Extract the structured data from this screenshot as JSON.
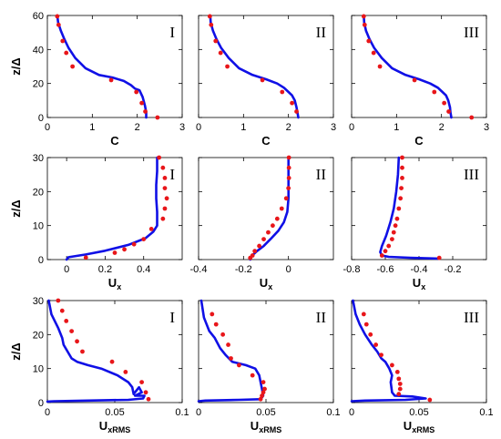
{
  "colors": {
    "line": "#1010e6",
    "points": "#e8161a",
    "axes": "#000000"
  },
  "chart_data": [
    {
      "type": "line",
      "panel_label": "I",
      "xlabel": "C",
      "xlabel_sub": "",
      "ylabel": "z/Δ",
      "xlim": [
        0,
        3
      ],
      "ylim": [
        0,
        60
      ],
      "xticks": [
        "0",
        "1",
        "2",
        "3"
      ],
      "yticks": [
        "0",
        "20",
        "40",
        "60"
      ],
      "series": [
        {
          "kind": "line",
          "x": [
            0.22,
            0.24,
            0.3,
            0.38,
            0.47,
            0.62,
            0.85,
            1.15,
            1.45,
            1.7,
            1.86,
            1.95,
            2.05,
            2.12,
            2.17,
            2.2,
            2.2
          ],
          "y": [
            60,
            56,
            51,
            46,
            41,
            35,
            29,
            25,
            23.5,
            21.5,
            19,
            17,
            16,
            12,
            7,
            3,
            0
          ]
        },
        {
          "kind": "points",
          "x": [
            0.22,
            0.25,
            0.34,
            0.42,
            0.56,
            1.42,
            1.98,
            2.1,
            2.18,
            2.45
          ],
          "y": [
            59.5,
            54.5,
            45,
            38,
            30,
            22,
            15,
            8.5,
            3.5,
            0
          ]
        }
      ]
    },
    {
      "type": "line",
      "panel_label": "II",
      "xlabel": "C",
      "xlabel_sub": "",
      "ylabel": "",
      "xlim": [
        0,
        3
      ],
      "ylim": [
        0,
        60
      ],
      "xticks": [
        "0",
        "1",
        "2",
        "3"
      ],
      "yticks": [],
      "series": [
        {
          "kind": "line",
          "x": [
            0.26,
            0.27,
            0.32,
            0.4,
            0.5,
            0.67,
            0.9,
            1.2,
            1.5,
            1.75,
            1.9,
            2.0,
            2.08,
            2.14,
            2.18,
            2.2,
            2.22
          ],
          "y": [
            60,
            56,
            51,
            46,
            41,
            35,
            29,
            25,
            22.5,
            20,
            17.5,
            15,
            13,
            10,
            6,
            3,
            0
          ]
        },
        {
          "kind": "points",
          "x": [
            0.25,
            0.28,
            0.38,
            0.49,
            0.64,
            1.42,
            1.86,
            2.08,
            2.18
          ],
          "y": [
            59.5,
            54.5,
            45,
            38,
            30,
            22,
            15,
            8.5,
            3.5
          ]
        }
      ]
    },
    {
      "type": "line",
      "panel_label": "III",
      "xlabel": "C",
      "xlabel_sub": "",
      "ylabel": "",
      "xlim": [
        0,
        3
      ],
      "ylim": [
        0,
        60
      ],
      "xticks": [
        "0",
        "1",
        "2",
        "3"
      ],
      "yticks": [],
      "series": [
        {
          "kind": "line",
          "x": [
            0.27,
            0.28,
            0.32,
            0.4,
            0.5,
            0.67,
            0.9,
            1.2,
            1.5,
            1.75,
            1.92,
            2.02,
            2.1,
            2.15,
            2.19,
            2.2,
            2.22
          ],
          "y": [
            60,
            56,
            51,
            46,
            41,
            35,
            29,
            25,
            22.5,
            20,
            17.5,
            15,
            13,
            10,
            6,
            3,
            0
          ]
        },
        {
          "kind": "points",
          "x": [
            0.27,
            0.29,
            0.38,
            0.49,
            0.63,
            1.4,
            1.84,
            2.06,
            2.16,
            2.67
          ],
          "y": [
            59.5,
            54.5,
            45,
            38,
            30,
            22,
            15,
            8.5,
            3.5,
            0
          ]
        }
      ]
    },
    {
      "type": "line",
      "panel_label": "I",
      "xlabel": "U",
      "xlabel_sub": "x",
      "ylabel": "z/Δ",
      "xlim": [
        -0.1,
        0.6
      ],
      "ylim": [
        0,
        30
      ],
      "xticks": [
        "0",
        "0.2",
        "0.4"
      ],
      "xtick_values": [
        0,
        0.2,
        0.4
      ],
      "yticks": [
        "0",
        "10",
        "20",
        "30"
      ],
      "series": [
        {
          "kind": "line",
          "x": [
            0.47,
            0.47,
            0.465,
            0.465,
            0.47,
            0.47,
            0.47,
            0.45,
            0.41,
            0.32,
            0.2,
            0.1,
            0.01,
            0
          ],
          "y": [
            30,
            26,
            22,
            18,
            14,
            11,
            10,
            8.2,
            6.3,
            4.3,
            2.6,
            1.5,
            0.7,
            0
          ]
        },
        {
          "kind": "points",
          "x": [
            0.48,
            0.5,
            0.51,
            0.51,
            0.52,
            0.51,
            0.5,
            0.44,
            0.4,
            0.35,
            0.3,
            0.25,
            0.1
          ],
          "y": [
            30,
            27,
            24,
            21,
            18,
            15,
            12,
            9,
            6,
            4.5,
            3,
            2,
            0.6
          ]
        }
      ]
    },
    {
      "type": "line",
      "panel_label": "II",
      "xlabel": "U",
      "xlabel_sub": "x",
      "ylabel": "",
      "xlim": [
        -0.4,
        0.2
      ],
      "ylim": [
        0,
        30
      ],
      "xticks": [
        "-0.4",
        "-0.2",
        "0"
      ],
      "xtick_values": [
        -0.4,
        -0.2,
        0
      ],
      "yticks": [],
      "series": [
        {
          "kind": "line",
          "x": [
            0,
            0,
            0,
            -0.005,
            -0.02,
            -0.045,
            -0.08,
            -0.11,
            -0.14,
            -0.16,
            -0.17,
            -0.17
          ],
          "y": [
            30,
            24,
            18,
            14,
            11,
            8.5,
            6,
            4,
            2.5,
            1.3,
            0.5,
            0
          ]
        },
        {
          "kind": "points",
          "x": [
            0.002,
            0.002,
            0.002,
            0.0,
            -0.01,
            -0.03,
            -0.05,
            -0.07,
            -0.09,
            -0.11,
            -0.13,
            -0.15,
            -0.16,
            -0.17
          ],
          "y": [
            30,
            27,
            24,
            21,
            18,
            15,
            12,
            10,
            8,
            6,
            4,
            2.5,
            1.2,
            0.5
          ]
        }
      ]
    },
    {
      "type": "line",
      "panel_label": "III",
      "xlabel": "U",
      "xlabel_sub": "x",
      "ylabel": "",
      "xlim": [
        -0.8,
        0
      ],
      "ylim": [
        0,
        30
      ],
      "xticks": [
        "-0.8",
        "-0.6",
        "-0.4",
        "-0.2"
      ],
      "xtick_values": [
        -0.8,
        -0.6,
        -0.4,
        -0.2
      ],
      "yticks": [],
      "series": [
        {
          "kind": "line",
          "x": [
            -0.52,
            -0.525,
            -0.535,
            -0.55,
            -0.57,
            -0.595,
            -0.62,
            -0.63,
            -0.62,
            -0.58,
            -0.45,
            -0.28
          ],
          "y": [
            30,
            25,
            20,
            15,
            11,
            7,
            4,
            2.2,
            1.2,
            0.8,
            0.5,
            0.3
          ]
        },
        {
          "kind": "points",
          "x": [
            -0.5,
            -0.5,
            -0.5,
            -0.505,
            -0.51,
            -0.52,
            -0.53,
            -0.54,
            -0.55,
            -0.56,
            -0.58,
            -0.6,
            -0.62,
            -0.28
          ],
          "y": [
            30,
            27,
            24,
            21,
            18,
            15,
            12,
            10,
            8,
            6,
            4,
            2.5,
            1.2,
            0.5
          ]
        }
      ]
    },
    {
      "type": "line",
      "panel_label": "I",
      "xlabel": "U",
      "xlabel_sub": "xRMS",
      "ylabel": "z/Δ",
      "xlim": [
        0,
        0.1
      ],
      "ylim": [
        0,
        30
      ],
      "xticks": [
        "0",
        "0.05",
        "0.1"
      ],
      "xtick_values": [
        0,
        0.05,
        0.1
      ],
      "yticks": [
        "0",
        "10",
        "20",
        "30"
      ],
      "series": [
        {
          "kind": "line",
          "x": [
            0.001,
            0.003,
            0.008,
            0.011,
            0.012,
            0.015,
            0.018,
            0.022,
            0.03,
            0.04,
            0.052,
            0.06,
            0.063,
            0.064,
            0.068,
            0.07,
            0.065,
            0.072,
            0.071,
            0.06,
            0.03,
            0.005,
            0
          ],
          "y": [
            30,
            26,
            22,
            19,
            17,
            15,
            13,
            12,
            11,
            10,
            8,
            6,
            4.5,
            2.5,
            4.5,
            3,
            2,
            2,
            1.2,
            0.8,
            0.6,
            0.4,
            0.3
          ]
        },
        {
          "kind": "points",
          "x": [
            0.008,
            0.011,
            0.014,
            0.018,
            0.022,
            0.026,
            0.048,
            0.058,
            0.07,
            0.073,
            0.075
          ],
          "y": [
            30,
            27,
            24,
            21,
            18,
            15,
            12,
            9,
            6,
            3,
            1
          ]
        }
      ]
    },
    {
      "type": "line",
      "panel_label": "II",
      "xlabel": "U",
      "xlabel_sub": "xRMS",
      "ylabel": "",
      "xlim": [
        0,
        0.1
      ],
      "ylim": [
        0,
        30
      ],
      "xticks": [
        "0",
        "0.05",
        "0.1"
      ],
      "xtick_values": [
        0,
        0.05,
        0.1
      ],
      "yticks": [],
      "series": [
        {
          "kind": "line",
          "x": [
            0.002,
            0.004,
            0.008,
            0.012,
            0.016,
            0.02,
            0.025,
            0.035,
            0.042,
            0.045,
            0.046,
            0.047,
            0.048,
            0.046,
            0.03,
            0.005,
            0
          ],
          "y": [
            30,
            25,
            21,
            19,
            16,
            14,
            12,
            11,
            10,
            8,
            6,
            4,
            2,
            1,
            0.8,
            0.6,
            0.4
          ]
        },
        {
          "kind": "points",
          "x": [
            0.01,
            0.013,
            0.018,
            0.022,
            0.024,
            0.03,
            0.04,
            0.048,
            0.049,
            0.048,
            0.047,
            0.046
          ],
          "y": [
            26,
            23,
            20,
            17,
            13,
            11,
            8,
            6,
            4,
            3,
            2,
            1
          ]
        }
      ]
    },
    {
      "type": "line",
      "panel_label": "III",
      "xlabel": "U",
      "xlabel_sub": "xRMS",
      "ylabel": "",
      "xlim": [
        0,
        0.1
      ],
      "ylim": [
        0,
        30
      ],
      "xticks": [
        "0",
        "0.05",
        "0.1"
      ],
      "xtick_values": [
        0,
        0.05,
        0.1
      ],
      "yticks": [],
      "series": [
        {
          "kind": "line",
          "x": [
            0.001,
            0.003,
            0.006,
            0.01,
            0.015,
            0.019,
            0.022,
            0.025,
            0.028,
            0.03,
            0.029,
            0.03,
            0.032,
            0.045,
            0.055,
            0.04,
            0.01,
            0
          ],
          "y": [
            30,
            26,
            23,
            20,
            17,
            15,
            13,
            12,
            10,
            8,
            6,
            3,
            2,
            1.8,
            1.2,
            0.8,
            0.6,
            0.4
          ]
        },
        {
          "kind": "points",
          "x": [
            0.009,
            0.011,
            0.014,
            0.018,
            0.022,
            0.03,
            0.034,
            0.035,
            0.036,
            0.036,
            0.035,
            0.058
          ],
          "y": [
            26,
            23,
            20,
            17,
            14,
            11,
            9,
            7,
            5.5,
            4,
            2.5,
            0.8
          ]
        }
      ]
    }
  ]
}
